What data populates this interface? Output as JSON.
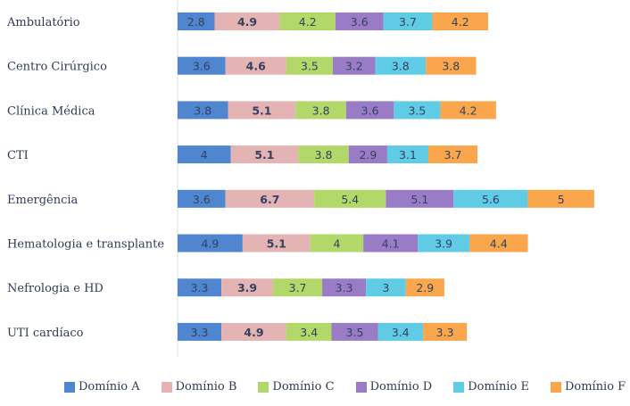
{
  "chart_data": {
    "type": "bar",
    "orientation": "horizontal",
    "stacked": true,
    "title": "",
    "xlabel": "",
    "ylabel": "",
    "grid": false,
    "legend_position": "bottom",
    "categories": [
      "Ambulatório",
      "Centro Cirúrgico",
      "Clínica Médica",
      "CTI",
      "Emergência",
      "Hematologia e transplante",
      "Nefrologia e HD",
      "UTI cardíaco"
    ],
    "series": [
      {
        "name": "Domínio A",
        "color": "#4f86cf",
        "values": [
          2.8,
          3.6,
          3.8,
          4,
          3.6,
          4.9,
          3.3,
          3.3
        ],
        "labels": [
          "2.8",
          "3.6",
          "3.8",
          "4",
          "3.6",
          "4.9",
          "3.3",
          "3.3"
        ]
      },
      {
        "name": "Domínio B",
        "color": "#e4b4b4",
        "values": [
          4.9,
          4.6,
          5.1,
          5.1,
          6.7,
          5.1,
          3.9,
          4.9
        ],
        "labels": [
          "4.9",
          "4.6",
          "5.1",
          "5.1",
          "6.7",
          "5.1",
          "3.9",
          "4.9"
        ]
      },
      {
        "name": "Domínio C",
        "color": "#b3d86a",
        "values": [
          4.2,
          3.5,
          3.8,
          3.8,
          5.4,
          4,
          3.7,
          3.4
        ],
        "labels": [
          "4.2",
          "3.5",
          "3.8",
          "3.8",
          "5.4",
          "4",
          "3.7",
          "3.4"
        ]
      },
      {
        "name": "Domínio D",
        "color": "#9a7cc6",
        "values": [
          3.6,
          3.2,
          3.6,
          2.9,
          5.1,
          4.1,
          3.3,
          3.5
        ],
        "labels": [
          "3.6",
          "3.2",
          "3.6",
          "2.9",
          "5.1",
          "4.1",
          "3.3",
          "3.5"
        ]
      },
      {
        "name": "Domínio E",
        "color": "#5fcbe4",
        "values": [
          3.7,
          3.8,
          3.5,
          3.1,
          5.6,
          3.9,
          3,
          3.4
        ],
        "labels": [
          "3.7",
          "3.8",
          "3.5",
          "3.1",
          "5.6",
          "3.9",
          "3",
          "3.4"
        ]
      },
      {
        "name": "Domínio F",
        "color": "#f9a64c",
        "values": [
          4.2,
          3.8,
          4.2,
          3.7,
          5,
          4.4,
          2.9,
          3.3
        ],
        "labels": [
          "4.2",
          "3.8",
          "4.2",
          "3.7",
          "5",
          "4.4",
          "2.9",
          "3.3"
        ]
      }
    ]
  }
}
